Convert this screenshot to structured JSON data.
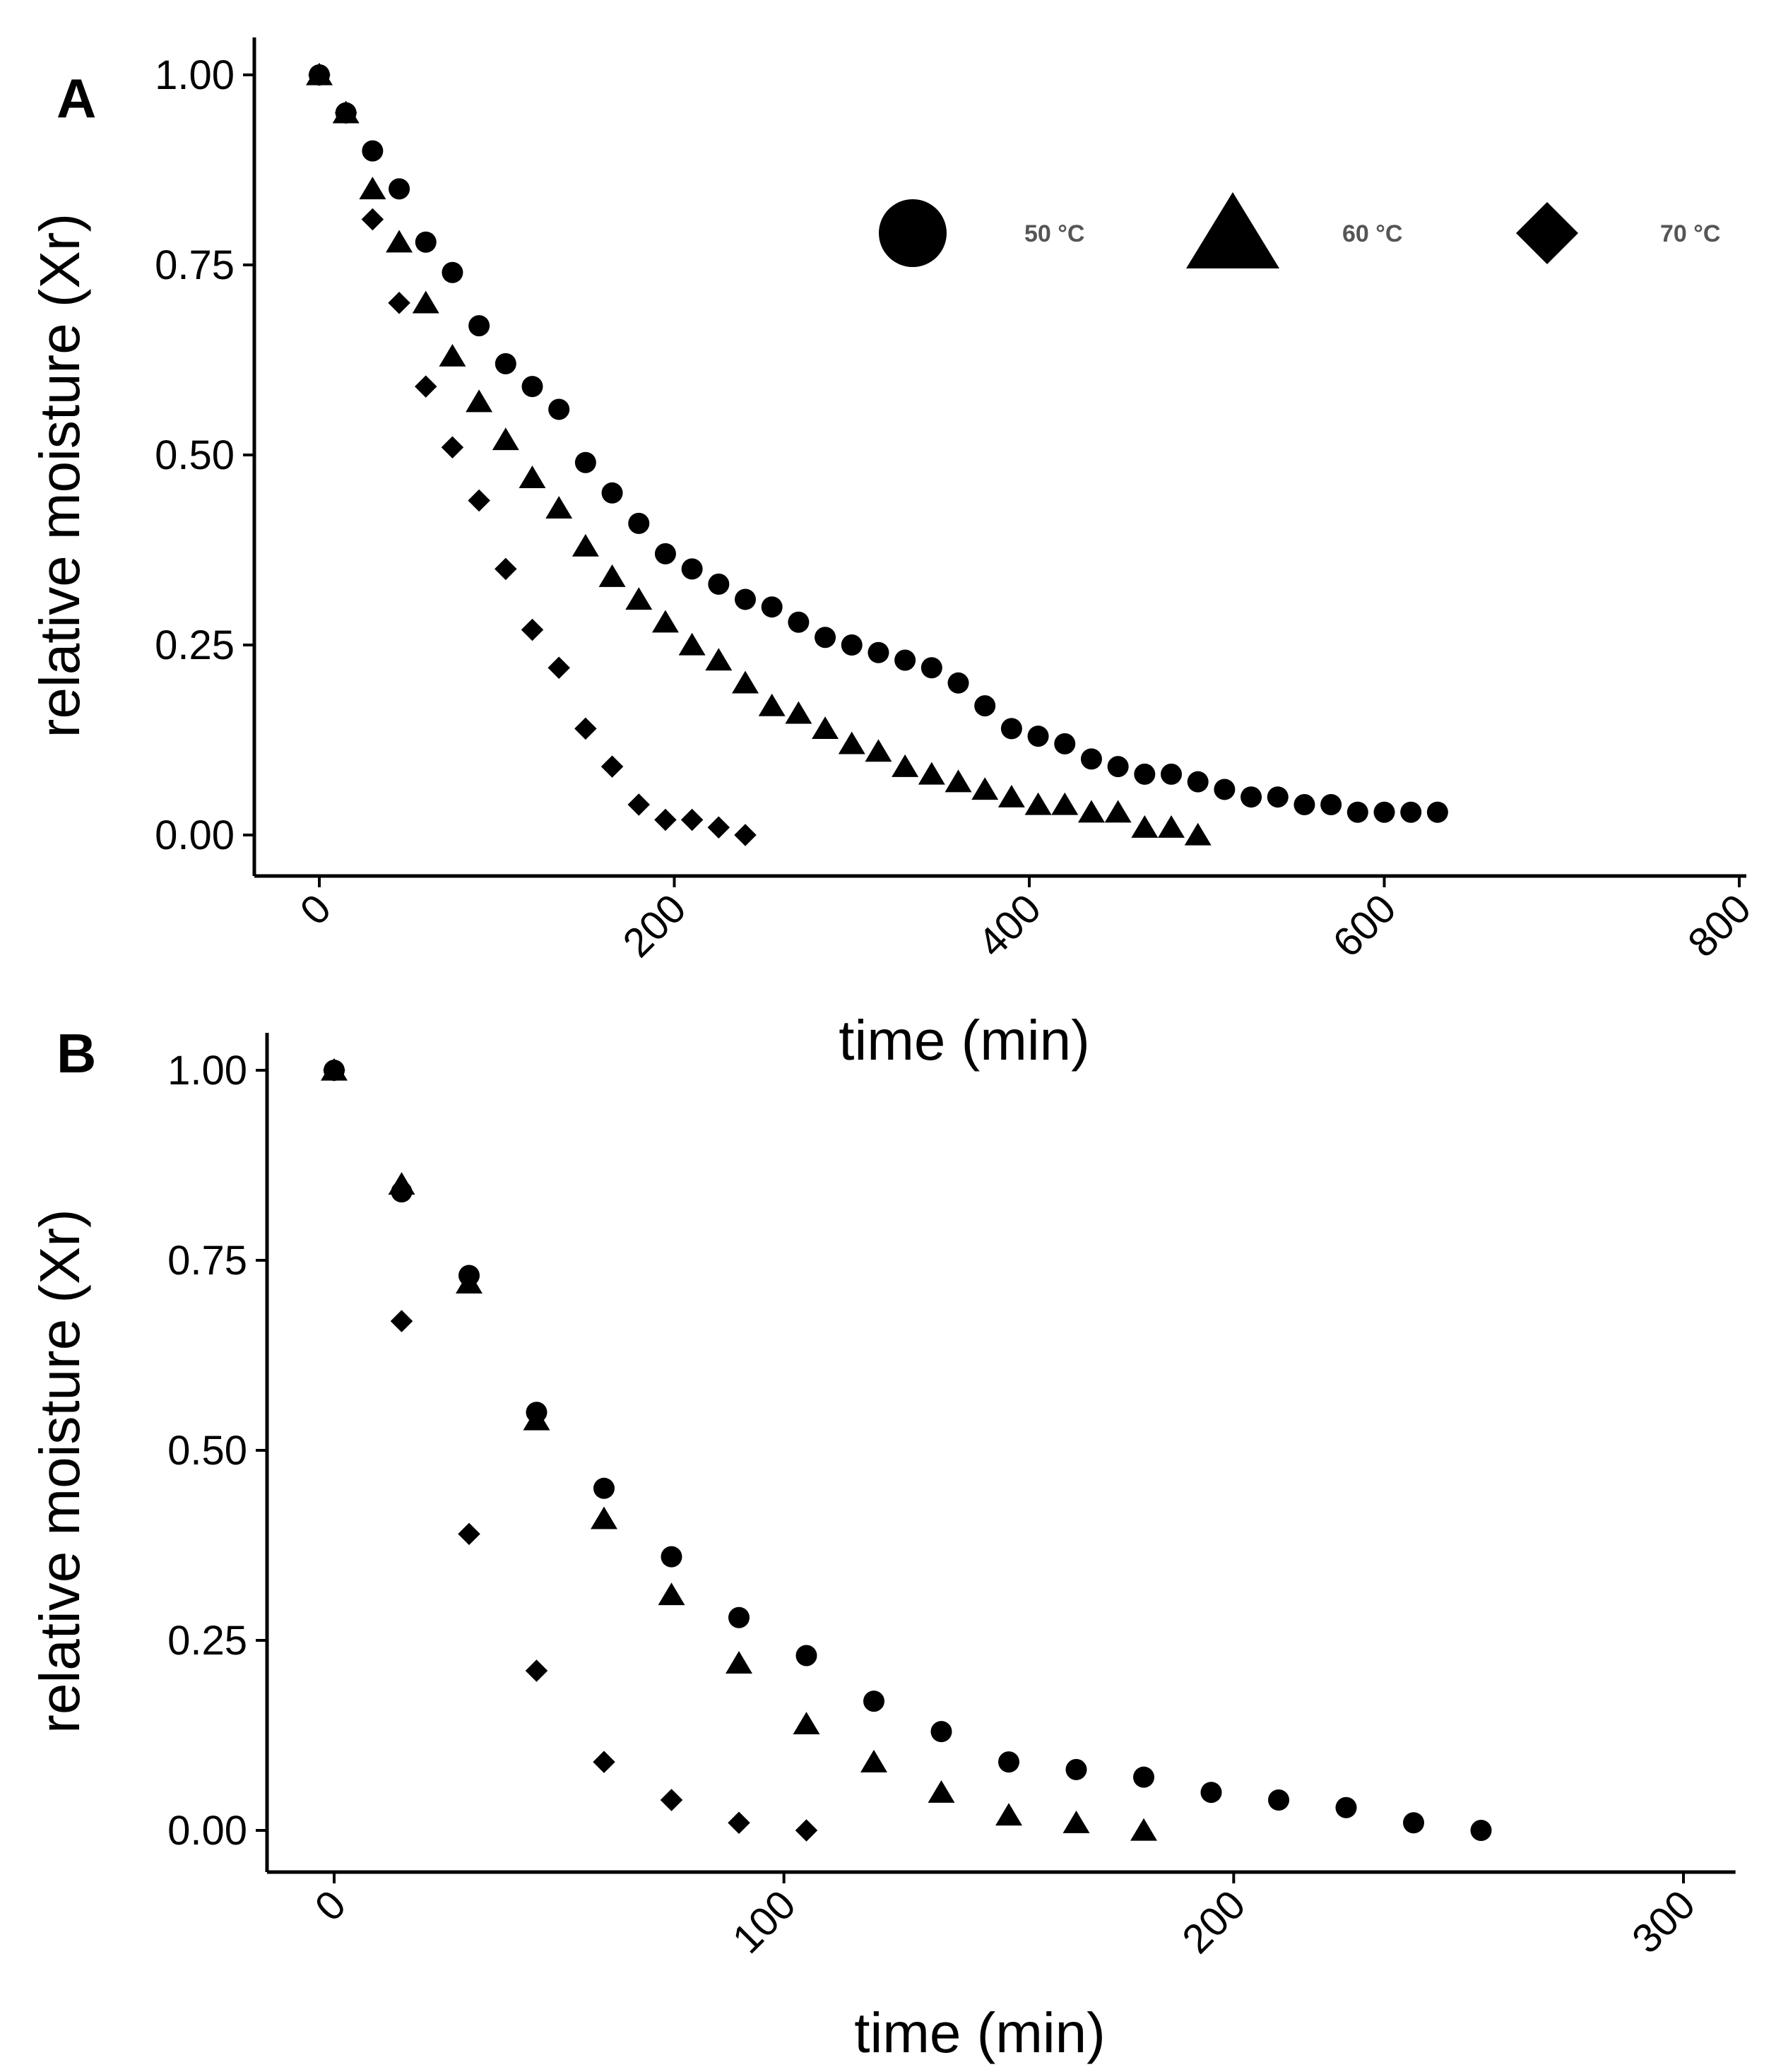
{
  "legend": {
    "items": [
      {
        "label": "50 °C",
        "shape": "circle"
      },
      {
        "label": "60 °C",
        "shape": "triangle"
      },
      {
        "label": "70 °C",
        "shape": "diamond"
      }
    ]
  },
  "chart_data": [
    {
      "type": "scatter",
      "panel": "A",
      "title": "",
      "xlabel": "time (min)",
      "ylabel": "relative moisture (Xr)",
      "xlim": [
        -20,
        800
      ],
      "ylim": [
        -0.04,
        1.04
      ],
      "xticks": [
        0,
        200,
        400,
        600,
        800
      ],
      "xtick_labels": [
        "0",
        "200",
        "400",
        "600",
        "800"
      ],
      "yticks": [
        0,
        0.25,
        0.5,
        0.75,
        1.0
      ],
      "ytick_labels": [
        "0.00",
        "0.25",
        "0.50",
        "0.75",
        "1.00"
      ],
      "grid": false,
      "legend_position": "top-right",
      "series": [
        {
          "name": "50 °C",
          "marker": "circle",
          "x": [
            0,
            15,
            30,
            45,
            60,
            75,
            90,
            105,
            120,
            135,
            150,
            165,
            180,
            195,
            210,
            225,
            240,
            255,
            270,
            285,
            300,
            315,
            330,
            345,
            360,
            375,
            390,
            405,
            420,
            435,
            450,
            465,
            480,
            495,
            510,
            525,
            540,
            555,
            570,
            585,
            600,
            615,
            630
          ],
          "y": [
            1.0,
            0.95,
            0.9,
            0.85,
            0.78,
            0.74,
            0.67,
            0.62,
            0.59,
            0.56,
            0.49,
            0.45,
            0.41,
            0.37,
            0.35,
            0.33,
            0.31,
            0.3,
            0.28,
            0.26,
            0.25,
            0.24,
            0.23,
            0.22,
            0.2,
            0.17,
            0.14,
            0.13,
            0.12,
            0.1,
            0.09,
            0.08,
            0.08,
            0.07,
            0.06,
            0.05,
            0.05,
            0.04,
            0.04,
            0.03,
            0.03,
            0.03,
            0.03
          ]
        },
        {
          "name": "60 °C",
          "marker": "triangle",
          "x": [
            0,
            15,
            30,
            45,
            60,
            75,
            90,
            105,
            120,
            135,
            150,
            165,
            180,
            195,
            210,
            225,
            240,
            255,
            270,
            285,
            300,
            315,
            330,
            345,
            360,
            375,
            390,
            405,
            420,
            435,
            450,
            465,
            480,
            495
          ],
          "y": [
            1.0,
            0.95,
            0.85,
            0.78,
            0.7,
            0.63,
            0.57,
            0.52,
            0.47,
            0.43,
            0.38,
            0.34,
            0.31,
            0.28,
            0.25,
            0.23,
            0.2,
            0.17,
            0.16,
            0.14,
            0.12,
            0.11,
            0.09,
            0.08,
            0.07,
            0.06,
            0.05,
            0.04,
            0.04,
            0.03,
            0.03,
            0.01,
            0.01,
            0.0
          ]
        },
        {
          "name": "70 °C",
          "marker": "diamond",
          "x": [
            0,
            15,
            30,
            45,
            60,
            75,
            90,
            105,
            120,
            135,
            150,
            165,
            180,
            195,
            210,
            225,
            240
          ],
          "y": [
            1.0,
            0.95,
            0.81,
            0.7,
            0.59,
            0.51,
            0.44,
            0.35,
            0.27,
            0.22,
            0.14,
            0.09,
            0.04,
            0.02,
            0.02,
            0.01,
            0.0
          ]
        }
      ]
    },
    {
      "type": "scatter",
      "panel": "B",
      "title": "",
      "xlabel": "time (min)",
      "ylabel": "relative moisture (Xr)",
      "xlim": [
        -15,
        310
      ],
      "ylim": [
        -0.04,
        1.04
      ],
      "xticks": [
        0,
        100,
        200,
        300
      ],
      "xtick_labels": [
        "0",
        "100",
        "200",
        "300"
      ],
      "yticks": [
        0,
        0.25,
        0.5,
        0.75,
        1.0
      ],
      "ytick_labels": [
        "0.00",
        "0.25",
        "0.50",
        "0.75",
        "1.00"
      ],
      "grid": false,
      "series": [
        {
          "name": "50 °C",
          "marker": "circle",
          "x": [
            0,
            15,
            30,
            45,
            60,
            75,
            90,
            105,
            120,
            135,
            150,
            165,
            180,
            195,
            210,
            225,
            240,
            255
          ],
          "y": [
            1.0,
            0.84,
            0.73,
            0.55,
            0.45,
            0.36,
            0.28,
            0.23,
            0.17,
            0.13,
            0.09,
            0.08,
            0.07,
            0.05,
            0.04,
            0.03,
            0.01,
            0.0
          ]
        },
        {
          "name": "60 °C",
          "marker": "triangle",
          "x": [
            0,
            15,
            30,
            45,
            60,
            75,
            90,
            105,
            120,
            135,
            150,
            165,
            180
          ],
          "y": [
            1.0,
            0.85,
            0.72,
            0.54,
            0.41,
            0.31,
            0.22,
            0.14,
            0.09,
            0.05,
            0.02,
            0.01,
            0.0
          ]
        },
        {
          "name": "70 °C",
          "marker": "diamond",
          "x": [
            0,
            15,
            30,
            45,
            60,
            75,
            90,
            105
          ],
          "y": [
            1.0,
            0.67,
            0.39,
            0.21,
            0.09,
            0.04,
            0.01,
            0.0
          ]
        }
      ]
    }
  ]
}
